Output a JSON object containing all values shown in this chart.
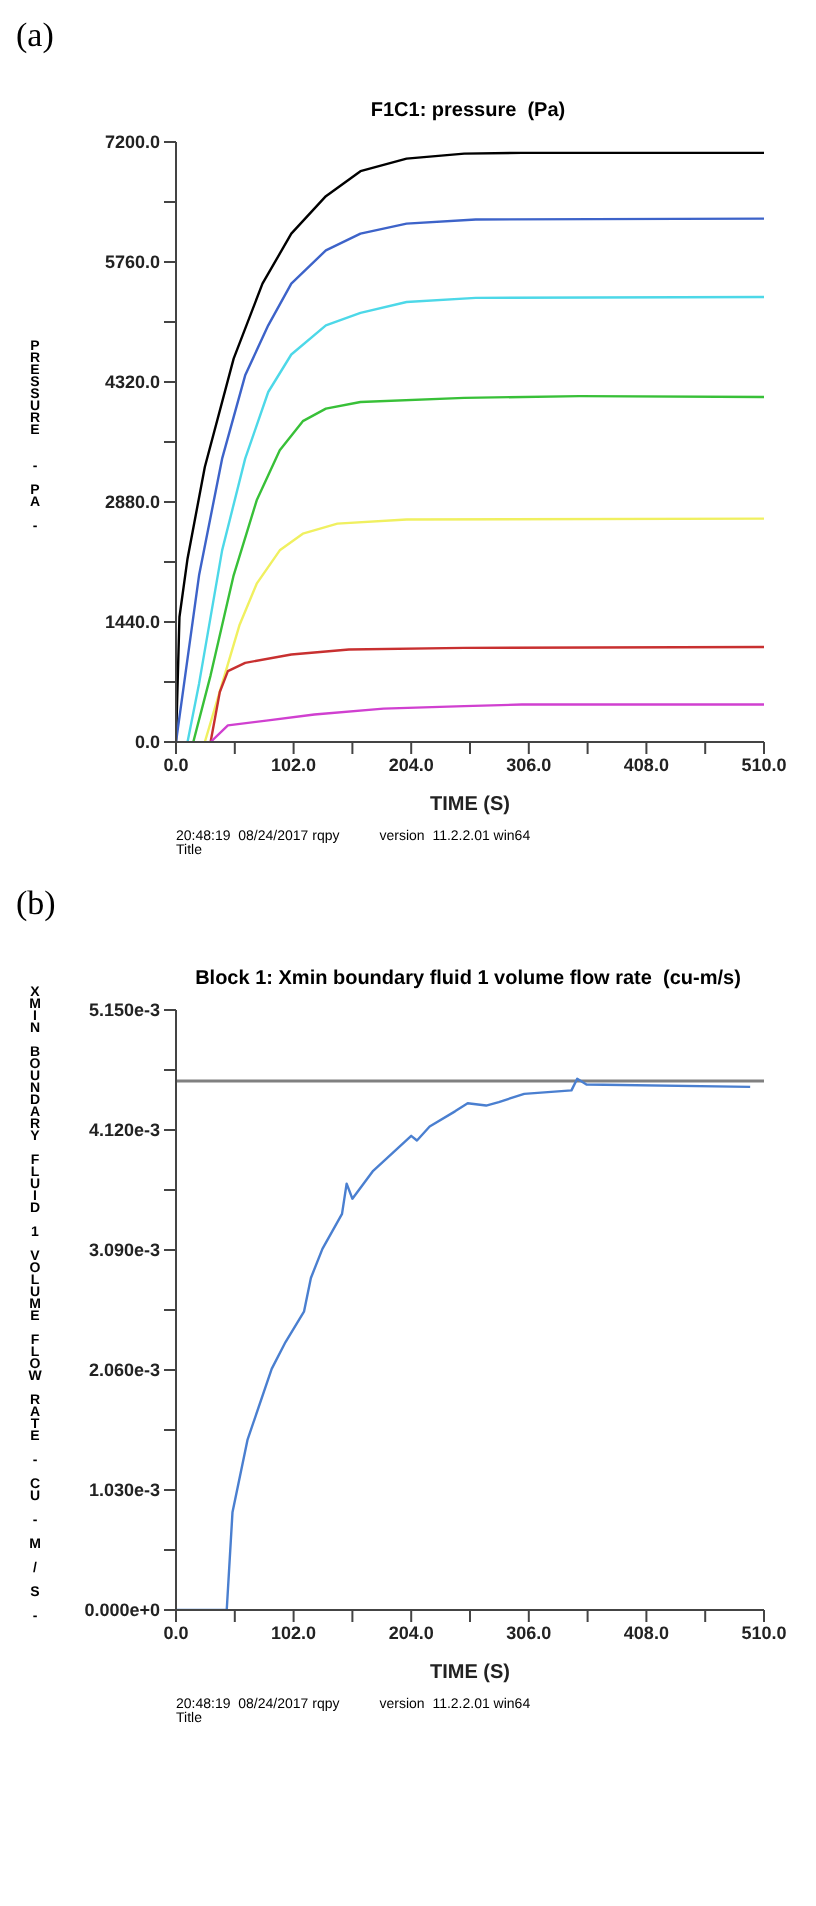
{
  "chart_data": [
    {
      "type": "line",
      "title": "F1C1: pressure  (Pa)",
      "xlabel": "TIME  (S)",
      "ylabel": "PRESSURE  - PA -",
      "annotations": [
        "(a)",
        "20:48:19  08/24/2017 rqpy",
        "version  11.2.2.01 win64",
        "Title"
      ],
      "xlim": [
        0,
        510
      ],
      "ylim": [
        0,
        7200
      ],
      "xticks": [
        {
          "value": 0,
          "label": "0.0"
        },
        {
          "value": 51,
          "label": null
        },
        {
          "value": 102,
          "label": "102.0"
        },
        {
          "value": 153,
          "label": null
        },
        {
          "value": 204,
          "label": "204.0"
        },
        {
          "value": 255,
          "label": null
        },
        {
          "value": 306,
          "label": "306.0"
        },
        {
          "value": 357,
          "label": null
        },
        {
          "value": 408,
          "label": "408.0"
        },
        {
          "value": 459,
          "label": null
        },
        {
          "value": 510,
          "label": "510.0"
        }
      ],
      "yticks": [
        {
          "value": 0,
          "label": "0.0"
        },
        {
          "value": 720,
          "label": null
        },
        {
          "value": 1440,
          "label": "1440.0"
        },
        {
          "value": 2160,
          "label": null
        },
        {
          "value": 2880,
          "label": "2880.0"
        },
        {
          "value": 3600,
          "label": null
        },
        {
          "value": 4320,
          "label": "4320.0"
        },
        {
          "value": 5040,
          "label": null
        },
        {
          "value": 5760,
          "label": "5760.0"
        },
        {
          "value": 6480,
          "label": null
        },
        {
          "value": 7200,
          "label": "7200.0"
        }
      ],
      "marker": "none",
      "line_style": "solid",
      "series": [
        {
          "color": "#000000",
          "x": [
            0,
            3,
            10,
            25,
            50,
            75,
            100,
            130,
            160,
            200,
            250,
            300,
            510
          ],
          "values": [
            0,
            1500,
            2200,
            3300,
            4600,
            5500,
            6100,
            6550,
            6850,
            7000,
            7060,
            7070,
            7070
          ]
        },
        {
          "color": "#3d63c9",
          "x": [
            0,
            8,
            20,
            40,
            60,
            80,
            100,
            130,
            160,
            200,
            260,
            510
          ],
          "values": [
            0,
            800,
            2000,
            3400,
            4400,
            5000,
            5500,
            5900,
            6100,
            6220,
            6270,
            6280
          ]
        },
        {
          "color": "#4dd8e8",
          "x": [
            10,
            20,
            40,
            60,
            80,
            100,
            130,
            160,
            200,
            260,
            510
          ],
          "values": [
            0,
            700,
            2300,
            3400,
            4200,
            4650,
            5000,
            5150,
            5280,
            5330,
            5340
          ]
        },
        {
          "color": "#38c038",
          "x": [
            15,
            30,
            50,
            70,
            90,
            110,
            130,
            160,
            250,
            350,
            510
          ],
          "values": [
            0,
            800,
            2000,
            2900,
            3500,
            3850,
            4000,
            4080,
            4130,
            4150,
            4140
          ]
        },
        {
          "color": "#f0f060",
          "x": [
            25,
            40,
            55,
            70,
            90,
            110,
            140,
            200,
            510
          ],
          "values": [
            0,
            700,
            1400,
            1900,
            2300,
            2500,
            2620,
            2670,
            2680
          ]
        },
        {
          "color": "#c83030",
          "x": [
            30,
            38,
            45,
            60,
            100,
            150,
            250,
            510
          ],
          "values": [
            0,
            600,
            850,
            950,
            1050,
            1110,
            1130,
            1140
          ]
        },
        {
          "color": "#d040d0",
          "x": [
            30,
            45,
            80,
            120,
            180,
            250,
            300,
            510
          ],
          "values": [
            0,
            200,
            260,
            330,
            400,
            430,
            450,
            450
          ]
        }
      ]
    },
    {
      "type": "line",
      "title": "Block 1: Xmin boundary fluid 1 volume flow rate  (cu-m/s)",
      "xlabel": "TIME  (S)",
      "ylabel": "XMIN BOUNDARY FLUID 1 VOLUME FLOW RATE - CU - M / S -",
      "annotations": [
        "(b)",
        "20:48:19  08/24/2017 rqpy",
        "version  11.2.2.01 win64",
        "Title"
      ],
      "xlim": [
        0,
        510
      ],
      "ylim": [
        0,
        0.00515
      ],
      "xticks": [
        {
          "value": 0,
          "label": "0.0"
        },
        {
          "value": 51,
          "label": null
        },
        {
          "value": 102,
          "label": "102.0"
        },
        {
          "value": 153,
          "label": null
        },
        {
          "value": 204,
          "label": "204.0"
        },
        {
          "value": 255,
          "label": null
        },
        {
          "value": 306,
          "label": "306.0"
        },
        {
          "value": 357,
          "label": null
        },
        {
          "value": 408,
          "label": "408.0"
        },
        {
          "value": 459,
          "label": null
        },
        {
          "value": 510,
          "label": "510.0"
        }
      ],
      "yticks": [
        {
          "value": 0,
          "label": "0.000e+0"
        },
        {
          "value": 0.000515,
          "label": null
        },
        {
          "value": 0.00103,
          "label": "1.030e-3"
        },
        {
          "value": 0.001545,
          "label": null
        },
        {
          "value": 0.00206,
          "label": "2.060e-3"
        },
        {
          "value": 0.002575,
          "label": null
        },
        {
          "value": 0.00309,
          "label": "3.090e-3"
        },
        {
          "value": 0.003605,
          "label": null
        },
        {
          "value": 0.00412,
          "label": "4.120e-3"
        },
        {
          "value": 0.004635,
          "label": null
        },
        {
          "value": 0.00515,
          "label": "5.150e-3"
        }
      ],
      "marker": "none",
      "line_style": "solid",
      "ref_lines": [
        {
          "axis": "y",
          "value": 0.00454,
          "color": "#808080"
        }
      ],
      "series": [
        {
          "color": "#4a7fd0",
          "x": [
            0,
            44,
            49,
            62,
            83,
            95,
            111,
            117,
            127,
            144,
            148,
            153,
            171,
            204,
            209,
            220,
            242,
            253,
            269,
            280,
            302,
            343,
            348,
            356,
            498
          ],
          "values": [
            0,
            0,
            0.00084,
            0.00146,
            0.00207,
            0.0023,
            0.00256,
            0.00285,
            0.0031,
            0.0034,
            0.00366,
            0.00353,
            0.00377,
            0.00407,
            0.00403,
            0.00415,
            0.00428,
            0.00435,
            0.00433,
            0.00436,
            0.00443,
            0.00446,
            0.00456,
            0.00451,
            0.00449
          ]
        }
      ]
    }
  ]
}
